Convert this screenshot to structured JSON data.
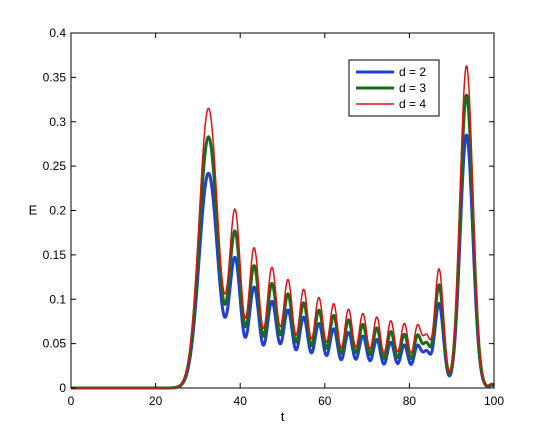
{
  "chart_data": {
    "type": "line",
    "xlabel": "t",
    "ylabel": "E",
    "xlim": [
      0,
      100
    ],
    "ylim": [
      0,
      0.4
    ],
    "x_ticks": [
      "0",
      "20",
      "40",
      "60",
      "80",
      "100"
    ],
    "y_ticks": [
      "0",
      "0.05",
      "0.1",
      "0.15",
      "0.2",
      "0.25",
      "0.3",
      "0.35",
      "0.4"
    ],
    "legend_position": "top-right",
    "grid": false,
    "base_series": "d = 4",
    "peaks": [
      {
        "t": 32.5,
        "width": 2.2
      },
      {
        "t": 38.8,
        "width": 1.35
      },
      {
        "t": 43.3,
        "width": 1.25
      },
      {
        "t": 47.5,
        "width": 1.2
      },
      {
        "t": 51.3,
        "width": 1.15
      },
      {
        "t": 55.0,
        "width": 1.1
      },
      {
        "t": 58.6,
        "width": 1.1
      },
      {
        "t": 62.1,
        "width": 1.05
      },
      {
        "t": 65.6,
        "width": 1.05
      },
      {
        "t": 69.0,
        "width": 1.05
      },
      {
        "t": 72.3,
        "width": 1.0
      },
      {
        "t": 75.6,
        "width": 1.0
      },
      {
        "t": 78.8,
        "width": 1.0
      },
      {
        "t": 81.9,
        "width": 0.95
      },
      {
        "t": 84.1,
        "width": 0.9
      },
      {
        "t": 87.0,
        "width": 1.05
      },
      {
        "t": 93.5,
        "width": 1.5
      },
      {
        "t": 99.5,
        "width": 0.6
      }
    ],
    "series": [
      {
        "name": "d = 2",
        "color": "#1f3fd6",
        "line_width": 3,
        "peak_values": [
          0.242,
          0.143,
          0.113,
          0.097,
          0.087,
          0.079,
          0.072,
          0.066,
          0.062,
          0.058,
          0.054,
          0.051,
          0.048,
          0.046,
          0.037,
          0.095,
          0.285,
          0.003
        ]
      },
      {
        "name": "d = 3",
        "color": "#1a6b1a",
        "line_width": 3,
        "peak_values": [
          0.283,
          0.172,
          0.137,
          0.117,
          0.105,
          0.095,
          0.087,
          0.081,
          0.076,
          0.071,
          0.067,
          0.063,
          0.06,
          0.057,
          0.045,
          0.116,
          0.33,
          0.004
        ]
      },
      {
        "name": "d = 4",
        "color": "#e01010",
        "line_width": 1.5,
        "peak_values": [
          0.315,
          0.196,
          0.157,
          0.135,
          0.121,
          0.11,
          0.101,
          0.094,
          0.088,
          0.083,
          0.079,
          0.075,
          0.072,
          0.068,
          0.053,
          0.134,
          0.363,
          0.005
        ]
      }
    ]
  }
}
